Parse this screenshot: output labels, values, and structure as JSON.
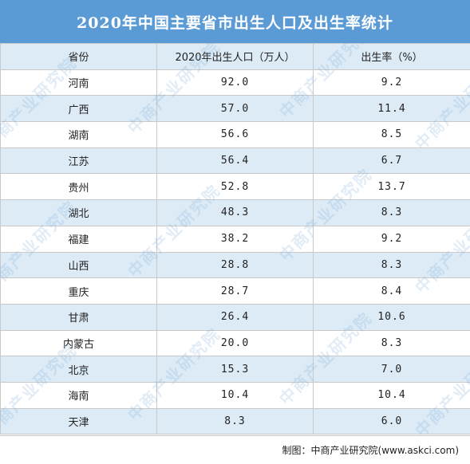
{
  "title": "2020年中国主要省市出生人口及出生率统计",
  "headers": [
    "省份",
    "2020年出生人口（万人）",
    "出生率（%）"
  ],
  "rows": [
    {
      "province": "河南",
      "births": "92.0",
      "rate": "9.2"
    },
    {
      "province": "广西",
      "births": "57.0",
      "rate": "11.4"
    },
    {
      "province": "湖南",
      "births": "56.6",
      "rate": "8.5"
    },
    {
      "province": "江苏",
      "births": "56.4",
      "rate": "6.7"
    },
    {
      "province": "贵州",
      "births": "52.8",
      "rate": "13.7"
    },
    {
      "province": "湖北",
      "births": "48.3",
      "rate": "8.3"
    },
    {
      "province": "福建",
      "births": "38.2",
      "rate": "9.2"
    },
    {
      "province": "山西",
      "births": "28.8",
      "rate": "8.3"
    },
    {
      "province": "重庆",
      "births": "28.7",
      "rate": "8.4"
    },
    {
      "province": "甘肃",
      "births": "26.4",
      "rate": "10.6"
    },
    {
      "province": "内蒙古",
      "births": "20.0",
      "rate": "8.3"
    },
    {
      "province": "北京",
      "births": "15.3",
      "rate": "7.0"
    },
    {
      "province": "海南",
      "births": "10.4",
      "rate": "10.4"
    },
    {
      "province": "天津",
      "births": "8.3",
      "rate": "6.0"
    }
  ],
  "source": "制图：中商产业研究院(www.askci.com)",
  "watermark": "中商产业研究院",
  "colors": {
    "title_bg": "#5B9BD5",
    "band": "#DDEBF7"
  }
}
